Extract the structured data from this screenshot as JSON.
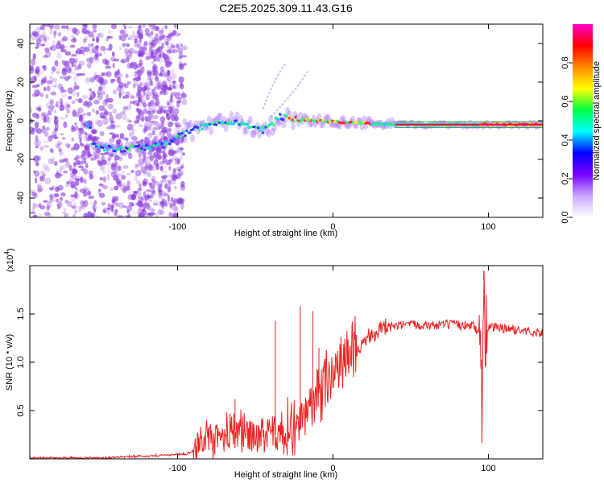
{
  "title": "C2E5.2025.309.11.43.G16",
  "colors": {
    "snr_line": "#ee2222",
    "spectrogram_noise": "#8a3bdc",
    "background": "#ffffff"
  },
  "chart_data": [
    {
      "type": "heatmap",
      "name": "spectrogram",
      "xlabel": "Height of straight line (km)",
      "ylabel": "Frequency (Hz)",
      "xlim": [
        -195,
        135
      ],
      "ylim": [
        -50,
        50
      ],
      "x_ticks": [
        -100,
        0,
        100
      ],
      "x_tick_labels": [
        "-100",
        "0",
        "100"
      ],
      "y_ticks": [
        -40,
        -20,
        0,
        20,
        40
      ],
      "y_tick_labels": [
        "-40",
        "-20",
        "0",
        "20",
        "40"
      ],
      "signal_track": [
        {
          "x": -155,
          "y": -13
        },
        {
          "x": -140,
          "y": -15
        },
        {
          "x": -125,
          "y": -14
        },
        {
          "x": -110,
          "y": -13
        },
        {
          "x": -100,
          "y": -8
        },
        {
          "x": -90,
          "y": -5
        },
        {
          "x": -80,
          "y": -2
        },
        {
          "x": -70,
          "y": 0
        },
        {
          "x": -55,
          "y": -2
        },
        {
          "x": -45,
          "y": -5
        },
        {
          "x": -40,
          "y": -3
        },
        {
          "x": -35,
          "y": 2
        },
        {
          "x": -25,
          "y": 1
        },
        {
          "x": -10,
          "y": 0
        },
        {
          "x": 10,
          "y": -1
        },
        {
          "x": 40,
          "y": -2
        },
        {
          "x": 90,
          "y": -2
        },
        {
          "x": 135,
          "y": -2
        }
      ],
      "colorbar": {
        "label": "Normalized spectral amplitude",
        "range": [
          0.0,
          1.0
        ],
        "ticks": [
          0.0,
          0.2,
          0.4,
          0.6,
          0.8
        ],
        "tick_labels": [
          "0.0",
          "0.2",
          "0.4",
          "0.6",
          "0.8"
        ],
        "colormap": [
          "#ffffff",
          "#c9a6ff",
          "#7a00ff",
          "#0000ff",
          "#00ffff",
          "#00ff44",
          "#ffff00",
          "#ff8800",
          "#ff0000",
          "#ff00cc"
        ]
      }
    },
    {
      "type": "line",
      "name": "snr",
      "xlabel": "Height of straight line (km)",
      "ylabel": "SNR (10 * v/v)",
      "scale_label": "(x10",
      "scale_exponent": "4",
      "xlim": [
        -195,
        135
      ],
      "ylim": [
        0,
        2.0
      ],
      "x_ticks": [
        -100,
        0,
        100
      ],
      "x_tick_labels": [
        "-100",
        "0",
        "100"
      ],
      "y_ticks": [
        0.5,
        1.0,
        1.5
      ],
      "y_tick_labels": [
        "0.5",
        "1.0",
        "1.5"
      ],
      "series": [
        {
          "name": "SNR",
          "x": [
            -195,
            -150,
            -120,
            -95,
            -90,
            -85,
            -75,
            -65,
            -55,
            -45,
            -35,
            -25,
            -15,
            -5,
            5,
            15,
            25,
            35,
            45,
            55,
            65,
            75,
            85,
            90,
            93,
            95,
            96,
            97,
            98,
            100,
            110,
            120,
            135
          ],
          "values": [
            0.01,
            0.01,
            0.03,
            0.05,
            0.08,
            0.15,
            0.22,
            0.3,
            0.26,
            0.24,
            0.25,
            0.32,
            0.5,
            0.8,
            1.0,
            1.15,
            1.3,
            1.36,
            1.38,
            1.39,
            1.38,
            1.39,
            1.38,
            1.4,
            1.3,
            1.45,
            0.12,
            1.85,
            1.3,
            1.37,
            1.35,
            1.33,
            1.3
          ]
        }
      ],
      "spikes": [
        {
          "x": -37,
          "value": 1.43
        },
        {
          "x": -21,
          "value": 1.58
        },
        {
          "x": -13,
          "value": 1.53
        },
        {
          "x": -9,
          "value": 1.15
        },
        {
          "x": -63,
          "value": 0.62
        },
        {
          "x": 96,
          "value": 0.12
        },
        {
          "x": 97,
          "value": 1.95
        }
      ]
    }
  ]
}
